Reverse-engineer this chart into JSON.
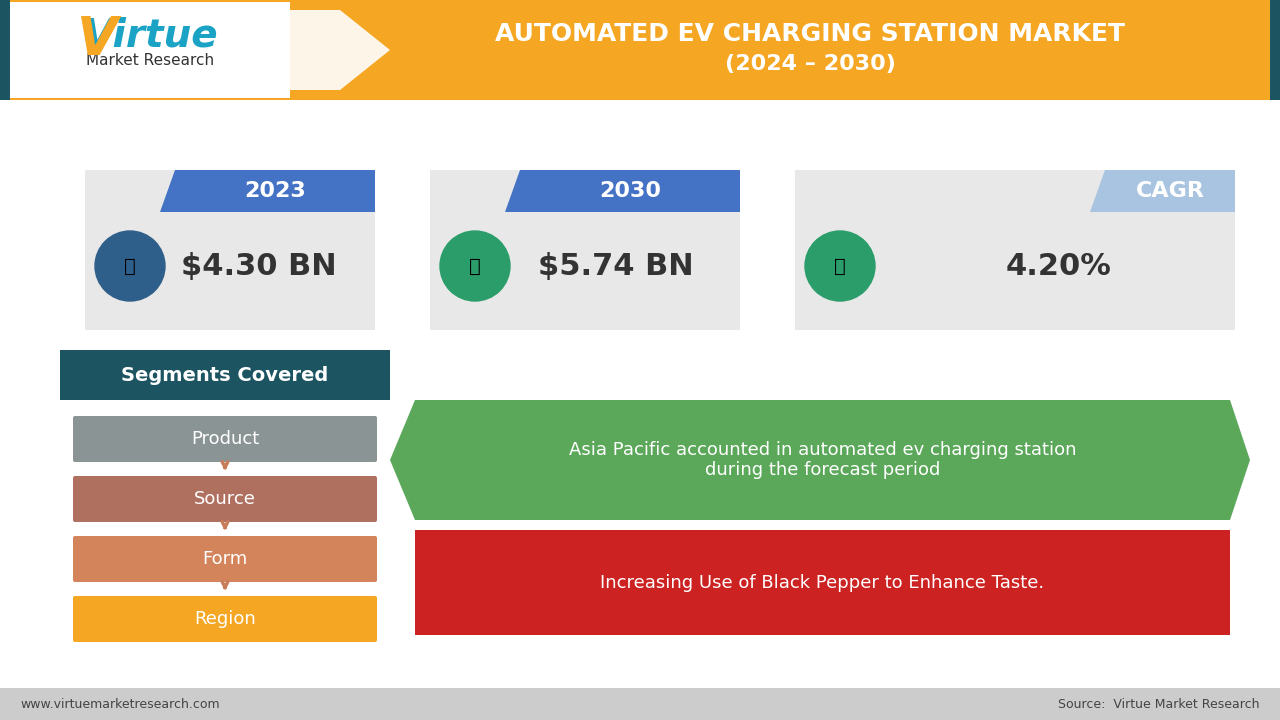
{
  "title_line1": "AUTOMATED EV CHARGING STATION MARKET",
  "title_line2": "(2024 – 2030)",
  "header_bg_color": "#F5A623",
  "header_text_color": "#FFFFFF",
  "header_dark_strip": "#1C5461",
  "bg_color": "#FFFFFF",
  "stat_cards": [
    {
      "year": "2023",
      "value": "$4.30 BN",
      "tab_color": "#4472C4",
      "box_color": "#E8E8E8",
      "icon_color": "#2E5F8A"
    },
    {
      "year": "2030",
      "value": "$5.74 BN",
      "tab_color": "#4472C4",
      "box_color": "#E8E8E8",
      "icon_color": "#2A9D6A"
    },
    {
      "year": "CAGR",
      "value": "4.20%",
      "tab_color": "#A8C4E0",
      "box_color": "#E8E8E8",
      "icon_color": "#2A9D6A"
    }
  ],
  "segments_header_color": "#1C5461",
  "segments_header_text": "Segments Covered",
  "segments": [
    {
      "label": "Product",
      "color": "#8B9494"
    },
    {
      "label": "Source",
      "color": "#B07060"
    },
    {
      "label": "Form",
      "color": "#D4845A"
    },
    {
      "label": "Region",
      "color": "#F5A623"
    }
  ],
  "arrow_color": "#C87D5A",
  "info_boxes": [
    {
      "text": "Asia Pacific accounted in automated ev charging station\nduring the forecast period",
      "bg_color": "#5BA85A",
      "text_color": "#FFFFFF",
      "arrow_tip": true
    },
    {
      "text": "Increasing Use of Black Pepper to Enhance Taste.",
      "bg_color": "#CC2222",
      "text_color": "#FFFFFF",
      "arrow_tip": false
    }
  ],
  "footer_text_left": "www.virtuemarketresearch.com",
  "footer_text_right": "Source:  Virtue Market Research",
  "footer_bg": "#E0E0E0"
}
